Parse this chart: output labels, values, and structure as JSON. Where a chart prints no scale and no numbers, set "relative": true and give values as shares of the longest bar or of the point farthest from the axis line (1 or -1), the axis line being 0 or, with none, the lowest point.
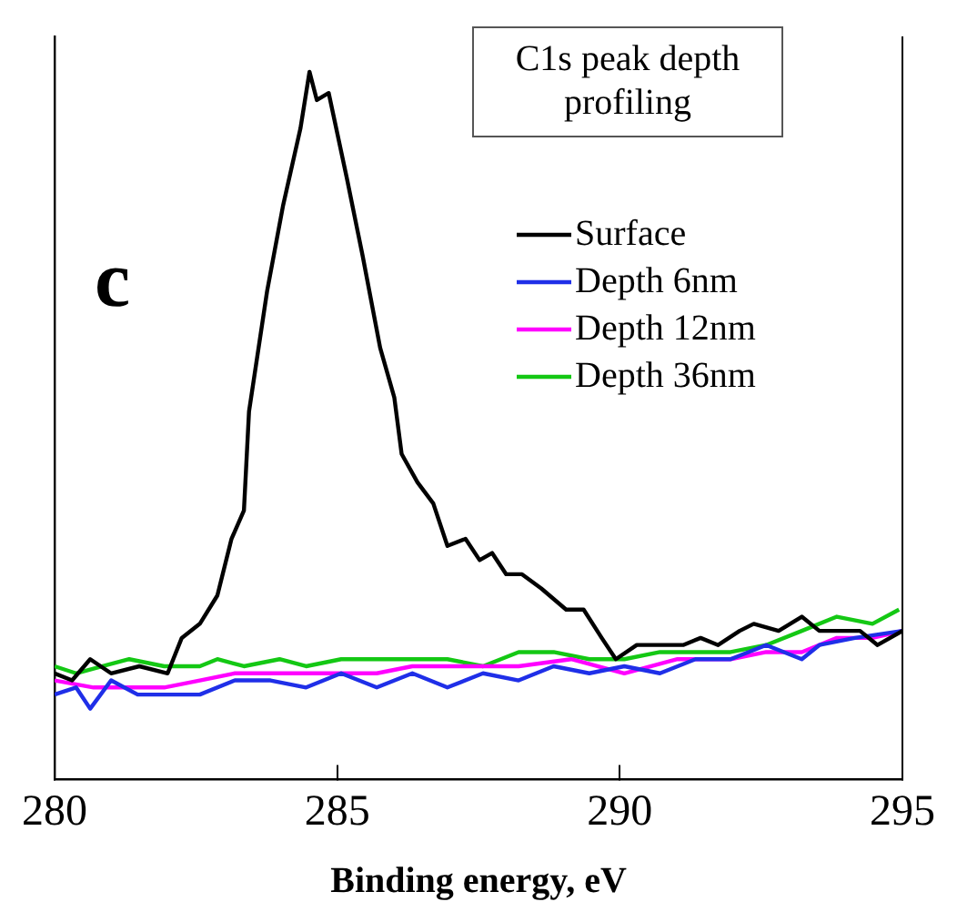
{
  "chart_data": {
    "type": "line",
    "title": "C1s peak depth profiling",
    "xlabel": "Binding energy, eV",
    "annotations": [
      "c"
    ],
    "relative": true,
    "xlim": [
      280,
      295
    ],
    "xticks": [
      280,
      285,
      290,
      295
    ],
    "grid": false,
    "legend": "top right",
    "marker": "none",
    "line_style": "solid",
    "series": [
      {
        "name": "Surface",
        "color": "#000000",
        "x": [
          280,
          280.31,
          280.63,
          281,
          281.5,
          282,
          282.25,
          282.57,
          282.88,
          283.13,
          283.35,
          283.44,
          283.76,
          284.04,
          284.35,
          284.51,
          284.64,
          284.85,
          285.17,
          285.45,
          285.76,
          286.01,
          286.14,
          286.42,
          286.7,
          286.95,
          287.27,
          287.52,
          287.74,
          287.99,
          288.27,
          288.61,
          289.05,
          289.36,
          289.68,
          289.93,
          290.3,
          290.62,
          291.12,
          291.43,
          291.74,
          292.12,
          292.37,
          292.81,
          293.22,
          293.53,
          293.84,
          294.25,
          294.56,
          295
        ],
        "values": [
          0.15,
          0.14,
          0.17,
          0.15,
          0.16,
          0.15,
          0.2,
          0.22,
          0.26,
          0.34,
          0.38,
          0.52,
          0.69,
          0.81,
          0.92,
          1,
          0.96,
          0.97,
          0.85,
          0.74,
          0.61,
          0.54,
          0.46,
          0.42,
          0.39,
          0.33,
          0.34,
          0.31,
          0.32,
          0.29,
          0.29,
          0.27,
          0.24,
          0.24,
          0.2,
          0.17,
          0.19,
          0.19,
          0.19,
          0.2,
          0.19,
          0.21,
          0.22,
          0.21,
          0.23,
          0.21,
          0.21,
          0.21,
          0.19,
          0.21
        ]
      },
      {
        "name": "Depth 6nm",
        "color": "#1f2fe8",
        "x": [
          280,
          280.38,
          280.63,
          281,
          281.47,
          281.94,
          282.57,
          283.19,
          283.82,
          284.45,
          285.07,
          285.7,
          286.33,
          286.95,
          287.58,
          288.21,
          288.83,
          289.46,
          290.08,
          290.71,
          291.34,
          291.96,
          292.59,
          293.22,
          293.53,
          294.16,
          295
        ],
        "values": [
          0.12,
          0.13,
          0.1,
          0.14,
          0.12,
          0.12,
          0.12,
          0.14,
          0.14,
          0.13,
          0.15,
          0.13,
          0.15,
          0.13,
          0.15,
          0.14,
          0.16,
          0.15,
          0.16,
          0.15,
          0.17,
          0.17,
          0.19,
          0.17,
          0.19,
          0.2,
          0.21
        ]
      },
      {
        "name": "Depth 12nm",
        "color": "#ff00ff",
        "x": [
          280,
          280.69,
          281.32,
          281.94,
          282.57,
          283.19,
          283.82,
          284.45,
          285.07,
          285.7,
          286.33,
          287.27,
          288.21,
          289.14,
          290.08,
          291.02,
          291.96,
          292.59,
          293.22,
          293.84,
          294.47,
          295
        ],
        "values": [
          0.14,
          0.13,
          0.13,
          0.13,
          0.14,
          0.15,
          0.15,
          0.15,
          0.15,
          0.15,
          0.16,
          0.16,
          0.16,
          0.17,
          0.15,
          0.17,
          0.17,
          0.18,
          0.18,
          0.2,
          0.2,
          0.21
        ]
      },
      {
        "name": "Depth 36nm",
        "color": "#14c814",
        "x": [
          280,
          280.38,
          280.85,
          281.32,
          281.94,
          282.57,
          282.88,
          283.35,
          283.98,
          284.45,
          285.07,
          285.7,
          286.33,
          286.95,
          287.58,
          288.21,
          288.83,
          289.46,
          290.08,
          290.71,
          291.34,
          291.96,
          292.59,
          293.22,
          293.84,
          294.47,
          294.94
        ],
        "values": [
          0.16,
          0.15,
          0.16,
          0.17,
          0.16,
          0.16,
          0.17,
          0.16,
          0.17,
          0.16,
          0.17,
          0.17,
          0.17,
          0.17,
          0.16,
          0.18,
          0.18,
          0.17,
          0.17,
          0.18,
          0.18,
          0.18,
          0.19,
          0.21,
          0.23,
          0.22,
          0.24
        ]
      }
    ]
  }
}
